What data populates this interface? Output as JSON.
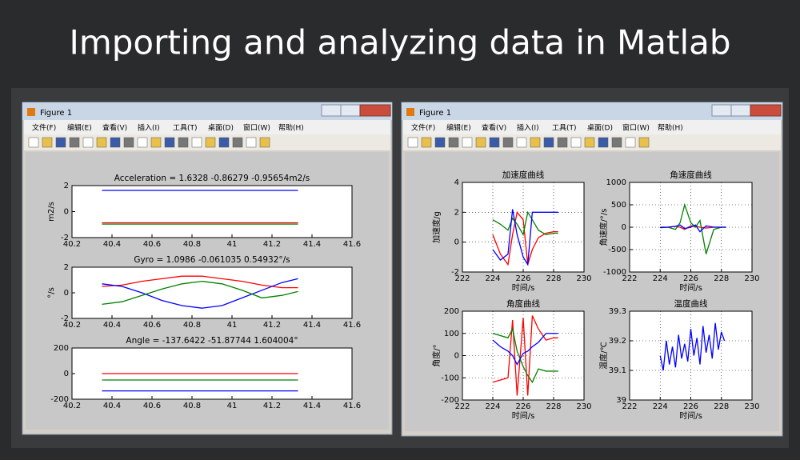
{
  "title": "Importing and analyzing data in Matlab",
  "windows": [
    {
      "title": "Figure 1",
      "menu": [
        "文件(F)",
        "编辑(E)",
        "查看(V)",
        "插入(I)",
        "工具(T)",
        "桌面(D)",
        "窗口(W)",
        "帮助(H)"
      ],
      "charts": [
        {
          "type": "line",
          "title": "Acceleration = 1.6328    -0.86279    -0.95654m2/s",
          "ylabel": "m2/s",
          "xlim": [
            40.2,
            41.6
          ],
          "ylim": [
            -2,
            2
          ],
          "xticks": [
            40.2,
            40.4,
            40.6,
            40.8,
            41,
            41.2,
            41.4,
            41.6
          ],
          "yticks": [
            -2,
            0,
            2
          ],
          "grid": false,
          "x": [
            40.35,
            40.84,
            41.33
          ],
          "series": [
            {
              "color": "#0000ff",
              "values": [
                1.63,
                1.63,
                1.63
              ]
            },
            {
              "color": "#ff0000",
              "values": [
                -0.86,
                -0.86,
                -0.86
              ]
            },
            {
              "color": "#008000",
              "values": [
                -0.96,
                -0.96,
                -0.96
              ]
            }
          ]
        },
        {
          "type": "line",
          "title": "Gyro = 1.0986    -0.061035    0.54932°/s",
          "ylabel": "°/s",
          "xlim": [
            40.2,
            41.6
          ],
          "ylim": [
            -2,
            2
          ],
          "xticks": [
            40.2,
            40.4,
            40.6,
            40.8,
            41,
            41.2,
            41.4,
            41.6
          ],
          "yticks": [
            -2,
            0,
            2
          ],
          "grid": false,
          "x": [
            40.35,
            40.45,
            40.55,
            40.65,
            40.75,
            40.85,
            40.95,
            41.05,
            41.15,
            41.25,
            41.33
          ],
          "series": [
            {
              "color": "#ff0000",
              "values": [
                0.5,
                0.6,
                0.9,
                1.1,
                1.3,
                1.3,
                1.1,
                0.9,
                0.6,
                0.4,
                0.4
              ]
            },
            {
              "color": "#0000ff",
              "values": [
                0.7,
                0.5,
                0.0,
                -0.6,
                -1.0,
                -1.2,
                -1.0,
                -0.4,
                0.2,
                0.8,
                1.1
              ]
            },
            {
              "color": "#008000",
              "values": [
                -0.9,
                -0.7,
                -0.2,
                0.3,
                0.7,
                0.9,
                0.7,
                0.2,
                -0.4,
                -0.2,
                0.1
              ]
            }
          ]
        },
        {
          "type": "line",
          "title": "Angle = -137.6422    -51.87744    1.604004°",
          "xlim": [
            40.2,
            41.6
          ],
          "ylim": [
            -200,
            200
          ],
          "xticks": [
            40.2,
            40.4,
            40.6,
            40.8,
            41,
            41.2,
            41.4,
            41.6
          ],
          "yticks": [
            -200,
            0,
            200
          ],
          "grid": false,
          "x": [
            40.35,
            40.84,
            41.33
          ],
          "series": [
            {
              "color": "#ff0000",
              "values": [
                0,
                0,
                0
              ]
            },
            {
              "color": "#008000",
              "values": [
                -50,
                -50,
                -50
              ]
            },
            {
              "color": "#0000ff",
              "values": [
                -135,
                -135,
                -135
              ]
            }
          ]
        }
      ]
    },
    {
      "title": "Figure 1",
      "menu": [
        "文件(F)",
        "编辑(E)",
        "查看(V)",
        "插入(I)",
        "工具(T)",
        "桌面(D)",
        "窗口(W)",
        "帮助(H)"
      ],
      "charts": [
        {
          "type": "line",
          "title": "加速度曲线",
          "ylabel": "加速度/g",
          "xlabel": "时间/s",
          "xlim": [
            222,
            230
          ],
          "ylim": [
            -2,
            4
          ],
          "xticks": [
            222,
            224,
            226,
            228,
            230
          ],
          "yticks": [
            -2,
            0,
            2,
            4
          ],
          "grid": true,
          "x": [
            224,
            224.5,
            225,
            225.3,
            225.6,
            226,
            226.3,
            226.6,
            227,
            227.5,
            228,
            228.3
          ],
          "series": [
            {
              "color": "#ff0000",
              "values": [
                0.5,
                -0.8,
                -1.5,
                0.5,
                2.0,
                1.5,
                -1.5,
                -0.5,
                0.3,
                0.6,
                0.7,
                0.7
              ]
            },
            {
              "color": "#008000",
              "values": [
                1.5,
                1.2,
                0.8,
                1.6,
                1.2,
                0.5,
                2.0,
                1.5,
                0.8,
                0.5,
                0.6,
                0.6
              ]
            },
            {
              "color": "#0000ff",
              "values": [
                -0.5,
                -1.2,
                -0.8,
                2.2,
                0.5,
                -1.0,
                -1.5,
                2.0,
                2.0,
                2.0,
                2.0,
                2.0
              ]
            }
          ]
        },
        {
          "type": "line",
          "title": "角速度曲线",
          "ylabel": "角速度/°/s",
          "xlabel": "时间/s",
          "xlim": [
            222,
            230
          ],
          "ylim": [
            -1000,
            1000
          ],
          "xticks": [
            222,
            224,
            226,
            228,
            230
          ],
          "yticks": [
            -1000,
            -500,
            0,
            500,
            1000
          ],
          "grid": true,
          "x": [
            224,
            224.5,
            225,
            225.3,
            225.6,
            226,
            226.3,
            226.6,
            227,
            227.5,
            228,
            228.3
          ],
          "series": [
            {
              "color": "#ff0000",
              "values": [
                0,
                0,
                20,
                0,
                -50,
                30,
                20,
                0,
                -20,
                0,
                0,
                0
              ]
            },
            {
              "color": "#008000",
              "values": [
                0,
                0,
                -50,
                100,
                500,
                100,
                0,
                150,
                -600,
                -50,
                0,
                0
              ]
            },
            {
              "color": "#0000ff",
              "values": [
                -10,
                0,
                20,
                50,
                -30,
                0,
                50,
                -100,
                30,
                0,
                0,
                0
              ]
            }
          ]
        },
        {
          "type": "line",
          "title": "角度曲线",
          "ylabel": "角度/°",
          "xlabel": "时间/s",
          "xlim": [
            222,
            230
          ],
          "ylim": [
            -200,
            200
          ],
          "xticks": [
            222,
            224,
            226,
            228,
            230
          ],
          "yticks": [
            -200,
            -100,
            0,
            100,
            200
          ],
          "grid": true,
          "x": [
            224,
            224.5,
            225,
            225.3,
            225.6,
            226,
            226.3,
            226.6,
            227,
            227.5,
            228,
            228.3
          ],
          "series": [
            {
              "color": "#ff0000",
              "values": [
                -120,
                -110,
                -100,
                160,
                -180,
                170,
                -180,
                180,
                120,
                70,
                80,
                80
              ]
            },
            {
              "color": "#008000",
              "values": [
                100,
                90,
                80,
                120,
                20,
                -50,
                -90,
                -120,
                -60,
                -70,
                -70,
                -70
              ]
            },
            {
              "color": "#0000ff",
              "values": [
                70,
                40,
                20,
                0,
                -40,
                10,
                20,
                40,
                60,
                100,
                100,
                100
              ]
            }
          ]
        },
        {
          "type": "line",
          "title": "温度曲线",
          "ylabel": "温度/℃",
          "xlabel": "时间/s",
          "xlim": [
            222,
            230
          ],
          "ylim": [
            39,
            39.3
          ],
          "xticks": [
            222,
            224,
            226,
            228,
            230
          ],
          "yticks": [
            39,
            39.1,
            39.2,
            39.3
          ],
          "grid": true,
          "x": [
            224,
            224.2,
            224.4,
            224.6,
            224.8,
            225,
            225.2,
            225.4,
            225.6,
            225.8,
            226,
            226.2,
            226.4,
            226.6,
            226.8,
            227,
            227.2,
            227.4,
            227.6,
            227.8,
            228,
            228.2
          ],
          "series": [
            {
              "color": "#0000ff",
              "values": [
                39.15,
                39.1,
                39.2,
                39.12,
                39.18,
                39.11,
                39.22,
                39.14,
                39.19,
                39.13,
                39.24,
                39.15,
                39.21,
                39.12,
                39.25,
                39.16,
                39.22,
                39.14,
                39.26,
                39.17,
                39.23,
                39.2
              ]
            }
          ]
        }
      ]
    }
  ]
}
